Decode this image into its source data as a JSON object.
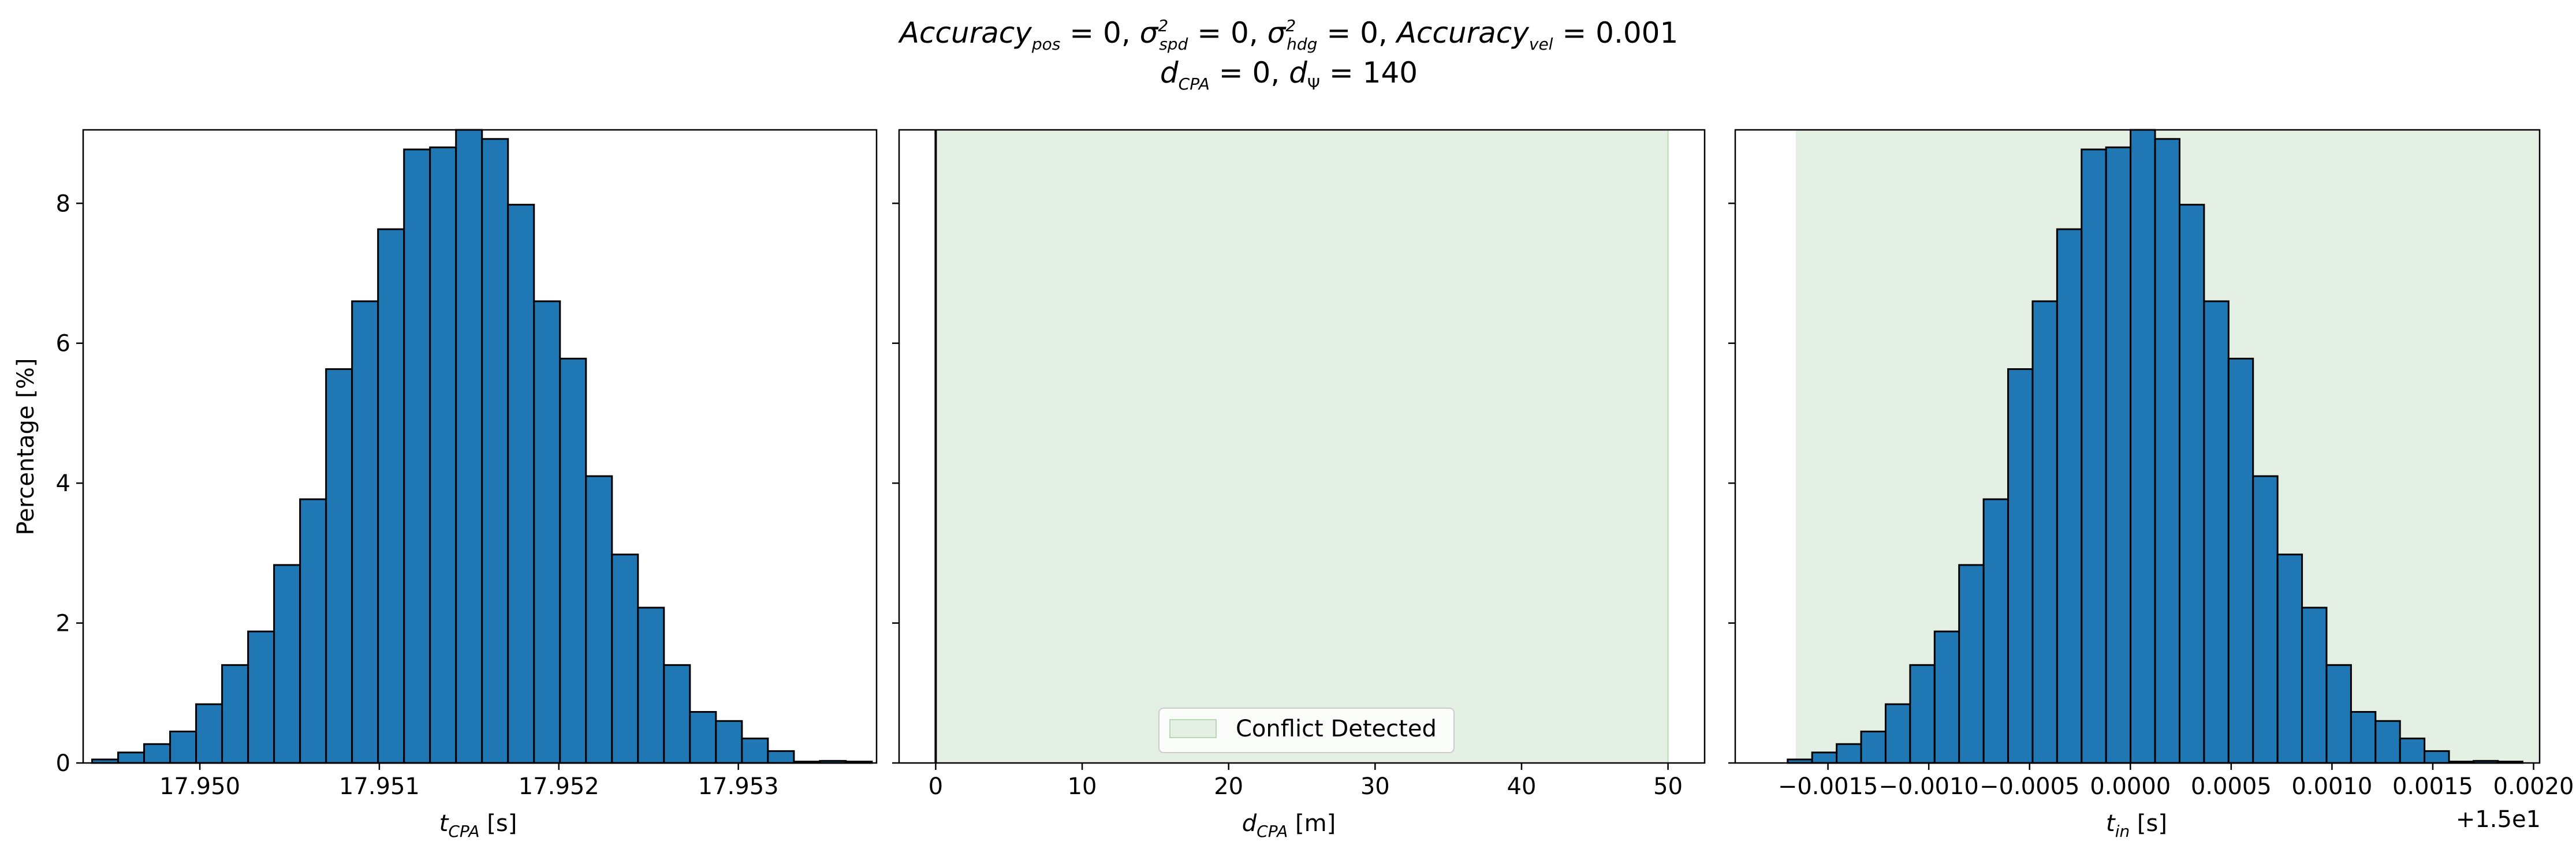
{
  "figure": {
    "title_line1": {
      "acc_pos_name": "Accuracy",
      "acc_pos_sub": "pos",
      "acc_pos_val": " = 0, ",
      "sigma": "σ",
      "spd_sub": "spd",
      "spd_sup": "2",
      "spd_val": " = 0, ",
      "hdg_sub": "hdg",
      "hdg_sup": "2",
      "hdg_val": " = 0, ",
      "acc_vel_name": "Accuracy",
      "acc_vel_sub": "vel",
      "acc_vel_val": " = 0.001"
    },
    "title_line2": {
      "dcpa_name": "d",
      "dcpa_sub": "CPA",
      "dcpa_val": " = 0, ",
      "dpsi_name": "d",
      "dpsi_sub": "Ψ",
      "dpsi_val": " = 140"
    }
  },
  "colors": {
    "bar": "#1f77b4",
    "edge": "#000000",
    "conflict_fill": "#e5f0e4",
    "conflict_edge": "#b8d8b6",
    "axis": "#000000"
  },
  "chart_data": [
    {
      "type": "bar",
      "id": "t_cpa",
      "xlabel": {
        "main": "t",
        "sub": "CPA",
        "unit": " [s]"
      },
      "ylabel": "Percentage [%]",
      "xlim": [
        17.94935,
        17.95377
      ],
      "ylim": [
        0,
        9.05
      ],
      "bin_start": 17.9494,
      "bin_width": 0.0001448,
      "values": [
        0.05,
        0.15,
        0.27,
        0.45,
        0.84,
        1.4,
        1.88,
        2.83,
        3.77,
        5.63,
        6.6,
        7.63,
        8.77,
        8.8,
        9.1,
        8.92,
        7.98,
        6.6,
        5.78,
        4.1,
        2.98,
        2.22,
        1.4,
        0.73,
        0.6,
        0.35,
        0.17,
        0.02,
        0.03,
        0.02
      ],
      "xticks": [
        17.95,
        17.951,
        17.952,
        17.953
      ],
      "xticklabels": [
        "17.950",
        "17.951",
        "17.952",
        "17.953"
      ],
      "yticks": [
        0,
        2,
        4,
        6,
        8
      ],
      "yticklabels": [
        "0",
        "2",
        "4",
        "6",
        "8"
      ]
    },
    {
      "type": "area",
      "id": "d_cpa",
      "xlabel": {
        "main": "d",
        "sub": "CPA",
        "unit": " [m]"
      },
      "xlim": [
        -2.5,
        52.5
      ],
      "ylim": [
        0,
        9.05
      ],
      "span": [
        0,
        50
      ],
      "vline_x": 0,
      "legend": {
        "label": "Conflict Detected",
        "position": "lower center"
      },
      "xticks": [
        0,
        10,
        20,
        30,
        40,
        50
      ],
      "xticklabels": [
        "0",
        "10",
        "20",
        "30",
        "40",
        "50"
      ],
      "yticks": [
        0,
        2,
        4,
        6,
        8
      ]
    },
    {
      "type": "bar",
      "id": "t_in",
      "xlabel": {
        "main": "t",
        "sub": "in",
        "unit": " [s]"
      },
      "offset_text": "+1.5e1",
      "xlim": [
        -0.00196,
        0.00203
      ],
      "ylim": [
        0,
        9.05
      ],
      "span": [
        -0.00166,
        0.00203
      ],
      "bin_start": -0.0017,
      "bin_width": 0.0001215,
      "values": [
        0.05,
        0.15,
        0.27,
        0.45,
        0.84,
        1.4,
        1.88,
        2.83,
        3.77,
        5.63,
        6.6,
        7.63,
        8.77,
        8.8,
        9.1,
        8.92,
        7.98,
        6.6,
        5.78,
        4.1,
        2.98,
        2.22,
        1.4,
        0.73,
        0.6,
        0.35,
        0.17,
        0.02,
        0.03,
        0.02
      ],
      "xticks": [
        -0.0015,
        -0.001,
        -0.0005,
        0.0,
        0.0005,
        0.001,
        0.0015,
        0.002
      ],
      "xticklabels": [
        "−0.0015",
        "−0.0010",
        "−0.0005",
        "0.0000",
        "0.0005",
        "0.0010",
        "0.0015",
        "0.0020"
      ],
      "yticks": [
        0,
        2,
        4,
        6,
        8
      ]
    }
  ]
}
